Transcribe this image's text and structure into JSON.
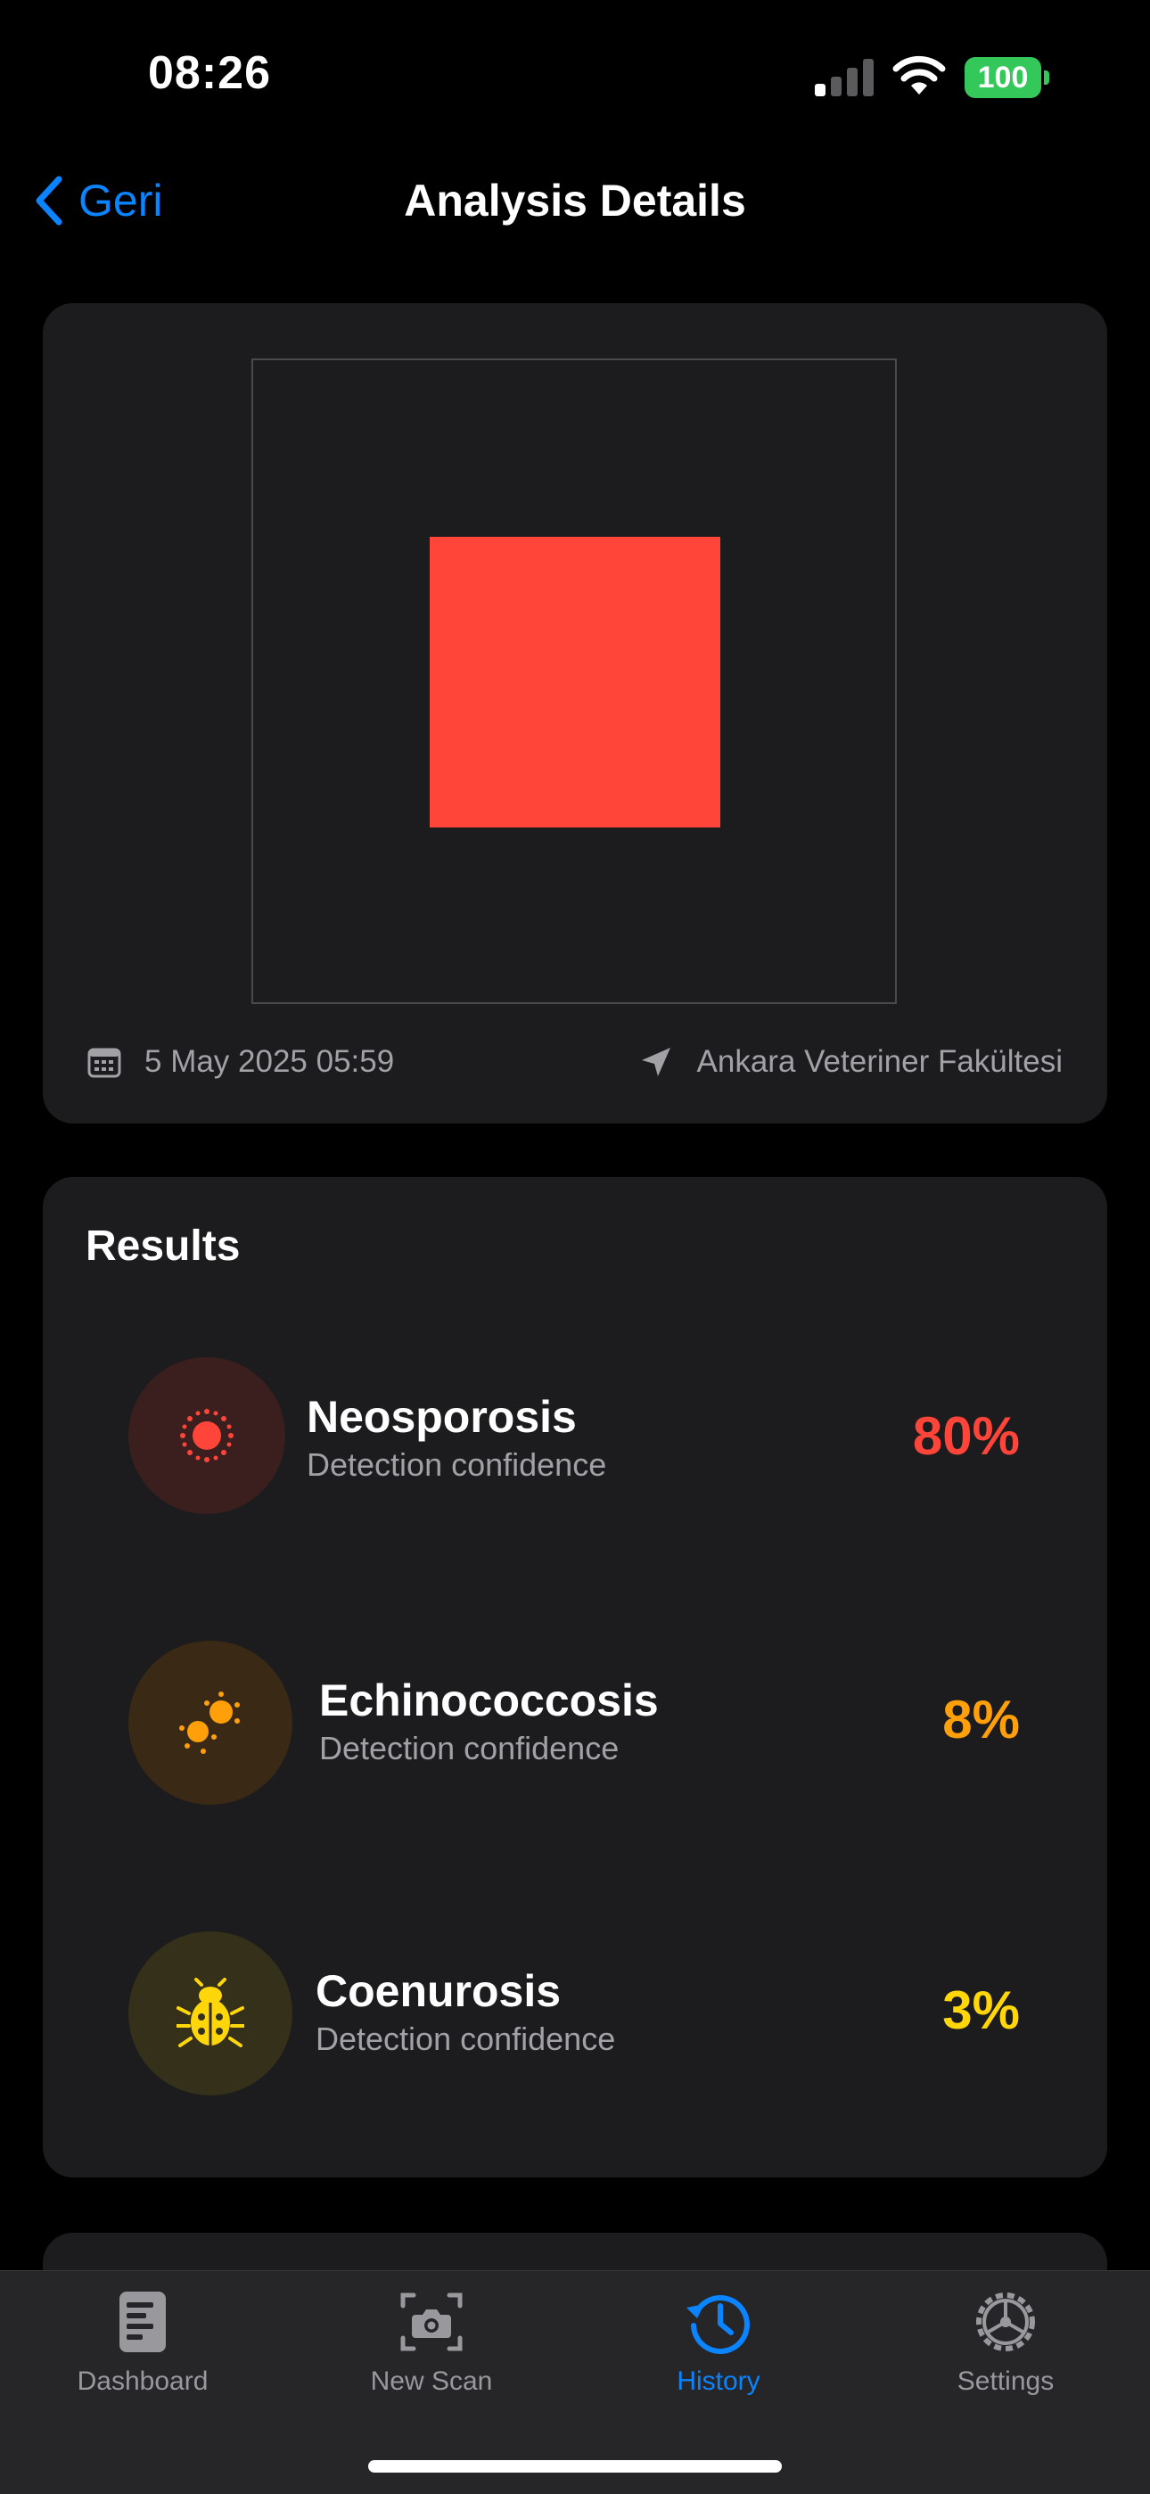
{
  "status_bar": {
    "time": "08:26",
    "battery": "100"
  },
  "nav": {
    "back_label": "Geri",
    "title": "Analysis Details"
  },
  "photo": {
    "date": "5 May 2025 05:59",
    "location": "Ankara Veteriner Fakültesi",
    "accent": "#ff453a"
  },
  "results": {
    "title": "Results",
    "items": [
      {
        "name": "Neosporosis",
        "subtitle": "Detection confidence",
        "percent": "80%",
        "color": "#ff453a",
        "icon": "virus-icon"
      },
      {
        "name": "Echinococcosis",
        "subtitle": "Detection confidence",
        "percent": "8%",
        "color": "#ff9f0a",
        "icon": "microbes-icon"
      },
      {
        "name": "Coenurosis",
        "subtitle": "Detection confidence",
        "percent": "3%",
        "color": "#ffd60a",
        "icon": "ladybug-icon"
      }
    ]
  },
  "tabs": [
    {
      "label": "Dashboard",
      "icon": "dashboard-icon",
      "active": false
    },
    {
      "label": "New Scan",
      "icon": "camera-icon",
      "active": false
    },
    {
      "label": "History",
      "icon": "history-icon",
      "active": true
    },
    {
      "label": "Settings",
      "icon": "gear-icon",
      "active": false
    }
  ]
}
